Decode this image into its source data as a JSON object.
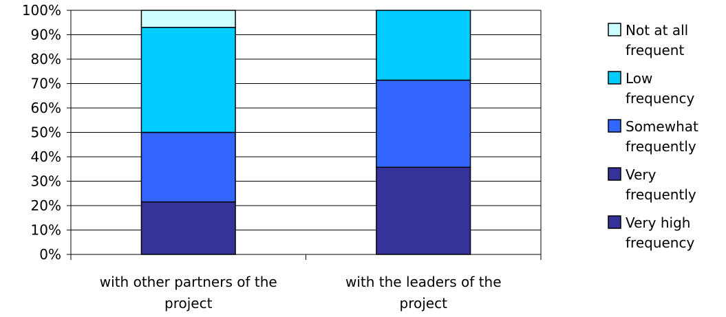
{
  "chart_data": {
    "type": "bar",
    "stacked": true,
    "normalized": true,
    "categories": [
      [
        "with other partners of the",
        "project"
      ],
      [
        "with the leaders of the",
        "project"
      ]
    ],
    "series": [
      {
        "name": [
          "Very high",
          "frequency"
        ],
        "color": "#333399",
        "values": [
          0,
          0
        ]
      },
      {
        "name": [
          "Very",
          "frequently"
        ],
        "color": "#333399",
        "values": [
          21.5,
          35.7
        ]
      },
      {
        "name": [
          "Somewhat",
          "frequently"
        ],
        "color": "#3366FF",
        "values": [
          28.5,
          35.7
        ]
      },
      {
        "name": [
          "Low",
          "frequency"
        ],
        "color": "#00CCFF",
        "values": [
          43,
          28.6
        ]
      },
      {
        "name": [
          "Not at all",
          "frequent"
        ],
        "color": "#CCFFFF",
        "values": [
          7,
          0
        ]
      }
    ],
    "ylim": [
      0,
      100
    ],
    "yticks": [
      "0%",
      "10%",
      "20%",
      "30%",
      "40%",
      "50%",
      "60%",
      "70%",
      "80%",
      "90%",
      "100%"
    ],
    "grid": true,
    "legend": "right"
  }
}
